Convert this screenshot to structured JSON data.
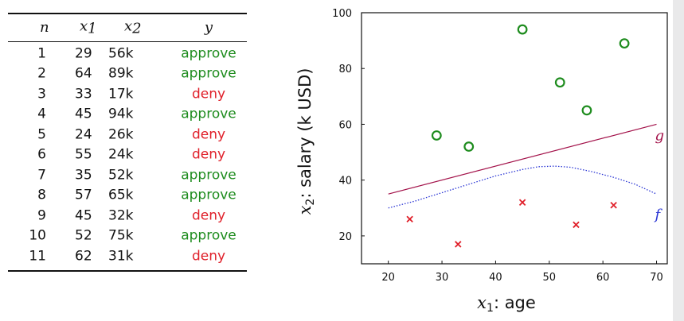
{
  "table": {
    "headers": {
      "n": "n",
      "x1": "x",
      "x1_sub": "1",
      "x2": "x",
      "x2_sub": "2",
      "y": "y"
    },
    "rows": [
      {
        "n": "1",
        "x1": "29",
        "x2": "56k",
        "y": "approve"
      },
      {
        "n": "2",
        "x1": "64",
        "x2": "89k",
        "y": "approve"
      },
      {
        "n": "3",
        "x1": "33",
        "x2": "17k",
        "y": "deny"
      },
      {
        "n": "4",
        "x1": "45",
        "x2": "94k",
        "y": "approve"
      },
      {
        "n": "5",
        "x1": "24",
        "x2": "26k",
        "y": "deny"
      },
      {
        "n": "6",
        "x1": "55",
        "x2": "24k",
        "y": "deny"
      },
      {
        "n": "7",
        "x1": "35",
        "x2": "52k",
        "y": "approve"
      },
      {
        "n": "8",
        "x1": "57",
        "x2": "65k",
        "y": "approve"
      },
      {
        "n": "9",
        "x1": "45",
        "x2": "32k",
        "y": "deny"
      },
      {
        "n": "10",
        "x1": "52",
        "x2": "75k",
        "y": "approve"
      },
      {
        "n": "11",
        "x1": "62",
        "x2": "31k",
        "y": "deny"
      }
    ]
  },
  "colors": {
    "approve": "#1e8c1e",
    "deny": "#e0202a",
    "g": "#a3124a",
    "f": "#2a35d4"
  },
  "chart_data": {
    "type": "scatter",
    "xlabel_var": "x",
    "xlabel_sub": "1",
    "xlabel_text": ":  age",
    "ylabel_var": "x",
    "ylabel_sub": "2",
    "ylabel_text": ":  salary (k USD)",
    "xlim": [
      15,
      72
    ],
    "ylim": [
      10,
      100
    ],
    "xticks": [
      20,
      30,
      40,
      50,
      60,
      70
    ],
    "yticks": [
      20,
      40,
      60,
      80,
      100
    ],
    "grid": false,
    "series": [
      {
        "name": "approve",
        "marker": "circle",
        "points": [
          [
            29,
            56
          ],
          [
            64,
            89
          ],
          [
            45,
            94
          ],
          [
            35,
            52
          ],
          [
            57,
            65
          ],
          [
            52,
            75
          ]
        ]
      },
      {
        "name": "deny",
        "marker": "x",
        "points": [
          [
            33,
            17
          ],
          [
            24,
            26
          ],
          [
            55,
            24
          ],
          [
            45,
            32
          ],
          [
            62,
            31
          ]
        ]
      }
    ],
    "lines": [
      {
        "name": "g",
        "style": "solid",
        "points": [
          [
            20,
            35
          ],
          [
            70,
            60
          ]
        ]
      },
      {
        "name": "f",
        "style": "dotted",
        "points": [
          [
            20,
            30
          ],
          [
            25,
            32.5
          ],
          [
            30,
            35.5
          ],
          [
            35,
            38.5
          ],
          [
            40,
            41.5
          ],
          [
            45,
            43.8
          ],
          [
            48,
            44.8
          ],
          [
            51,
            45
          ],
          [
            54,
            44.6
          ],
          [
            58,
            43
          ],
          [
            62,
            41
          ],
          [
            66,
            38.5
          ],
          [
            70,
            35
          ]
        ]
      }
    ]
  }
}
